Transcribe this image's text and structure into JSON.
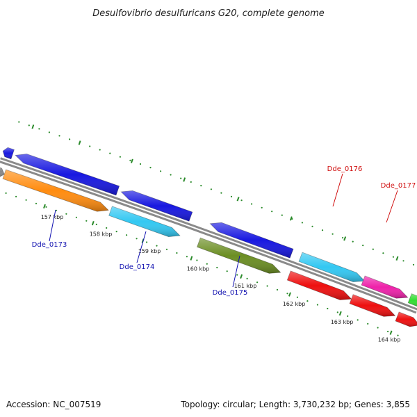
{
  "title": "Desulfovibrio desulfuricans G20, complete genome",
  "footer": {
    "accession": "Accession: NC_007519",
    "summary": "Topology: circular; Length: 3,730,232 bp; Genes: 3,855"
  },
  "tick_labels": [
    "157 kbp",
    "158 kbp",
    "159 kbp",
    "160 kbp",
    "161 kbp",
    "162 kbp",
    "163 kbp",
    "164 kbp"
  ],
  "gene_labels": [
    "Dde_0173",
    "Dde_0174",
    "Dde_0175",
    "Dde_0176",
    "Dde_0177"
  ],
  "colors": {
    "backbone": "#8a8a8a",
    "tick": "#2a8a2a",
    "label_blue": "#1010b0",
    "label_red": "#d01010",
    "blue": "#1818e0",
    "cyan": "#33c8f2",
    "orange": "#ff8c10",
    "olive": "#6b8e23",
    "red": "#ee1010",
    "magenta": "#ee22aa",
    "green": "#33dd33",
    "gray": "#888888"
  }
}
